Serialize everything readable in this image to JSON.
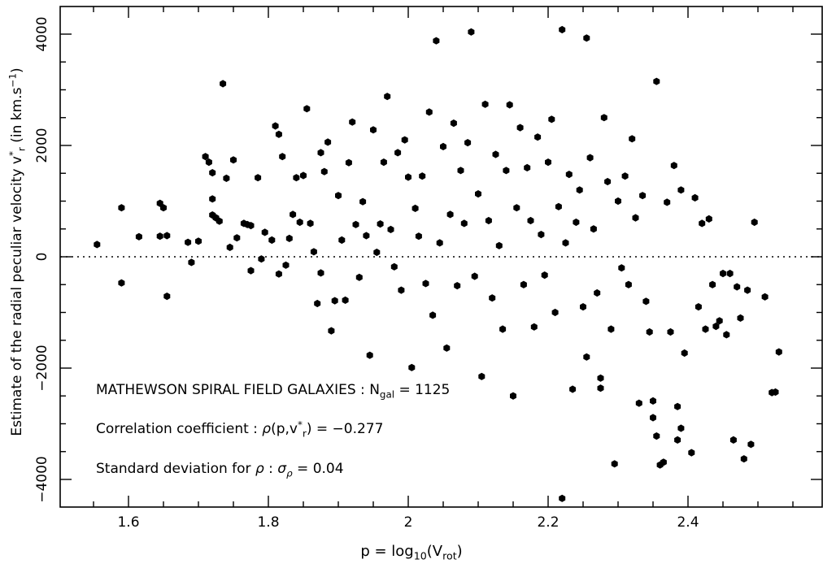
{
  "chart_data": {
    "type": "scatter",
    "xlabel": "p = log10(Vrot)",
    "ylabel": "Estimate of the radial peculiar velocity v*r (in km.s−1)",
    "xlim": [
      1.5,
      2.6
    ],
    "ylim": [
      -4500,
      4500
    ],
    "x_ticks": [
      1.6,
      1.8,
      2.0,
      2.2,
      2.4
    ],
    "x_tick_labels": [
      "1.6",
      "1.8",
      "2",
      "2.2",
      "2.4"
    ],
    "y_ticks": [
      -4000,
      -2000,
      0,
      2000,
      4000
    ],
    "y_tick_labels": [
      "−4000",
      "−2000",
      "0",
      "2000",
      "4000"
    ],
    "reference_line": {
      "y": 0,
      "style": "dotted"
    },
    "grid": false,
    "marker_color": "#000000",
    "annotations": [
      "MATHEWSON SPIRAL FIELD GALAXIES : Ngal = 1125",
      "Correlation coefficient : ρ(p,v*r) = −0.277",
      "Standard deviation for ρ : σρ = 0.04"
    ],
    "n_points": 1125,
    "points": [
      [
        1.555,
        220
      ],
      [
        1.59,
        880
      ],
      [
        1.59,
        -470
      ],
      [
        1.615,
        360
      ],
      [
        1.645,
        960
      ],
      [
        1.645,
        370
      ],
      [
        1.65,
        880
      ],
      [
        1.655,
        380
      ],
      [
        1.655,
        -710
      ],
      [
        1.685,
        260
      ],
      [
        1.69,
        -100
      ],
      [
        1.7,
        280
      ],
      [
        1.71,
        1800
      ],
      [
        1.715,
        1700
      ],
      [
        1.72,
        1510
      ],
      [
        1.72,
        1040
      ],
      [
        1.72,
        750
      ],
      [
        1.725,
        700
      ],
      [
        1.73,
        640
      ],
      [
        1.735,
        3110
      ],
      [
        1.74,
        1410
      ],
      [
        1.745,
        170
      ],
      [
        1.75,
        1740
      ],
      [
        1.755,
        340
      ],
      [
        1.765,
        600
      ],
      [
        1.77,
        580
      ],
      [
        1.775,
        -250
      ],
      [
        1.775,
        560
      ],
      [
        1.785,
        1420
      ],
      [
        1.79,
        -40
      ],
      [
        1.795,
        440
      ],
      [
        1.805,
        300
      ],
      [
        1.81,
        2350
      ],
      [
        1.815,
        2200
      ],
      [
        1.815,
        -310
      ],
      [
        1.82,
        1800
      ],
      [
        1.825,
        -150
      ],
      [
        1.83,
        330
      ],
      [
        1.835,
        760
      ],
      [
        1.84,
        1420
      ],
      [
        1.845,
        620
      ],
      [
        1.85,
        1460
      ],
      [
        1.855,
        2660
      ],
      [
        1.86,
        600
      ],
      [
        1.865,
        90
      ],
      [
        1.87,
        -840
      ],
      [
        1.875,
        1870
      ],
      [
        1.875,
        -290
      ],
      [
        1.88,
        1530
      ],
      [
        1.885,
        2060
      ],
      [
        1.89,
        -1330
      ],
      [
        1.895,
        -790
      ],
      [
        1.9,
        1100
      ],
      [
        1.905,
        300
      ],
      [
        1.91,
        -780
      ],
      [
        1.915,
        1690
      ],
      [
        1.92,
        2420
      ],
      [
        1.925,
        580
      ],
      [
        1.93,
        -370
      ],
      [
        1.935,
        990
      ],
      [
        1.94,
        380
      ],
      [
        1.945,
        -1770
      ],
      [
        1.95,
        2280
      ],
      [
        1.955,
        80
      ],
      [
        1.96,
        590
      ],
      [
        1.965,
        1700
      ],
      [
        1.97,
        2880
      ],
      [
        1.975,
        490
      ],
      [
        1.98,
        -180
      ],
      [
        1.985,
        1870
      ],
      [
        1.99,
        -600
      ],
      [
        1.995,
        2100
      ],
      [
        2.0,
        1430
      ],
      [
        2.005,
        -1990
      ],
      [
        2.01,
        870
      ],
      [
        2.015,
        370
      ],
      [
        2.02,
        1450
      ],
      [
        2.025,
        -480
      ],
      [
        2.03,
        2600
      ],
      [
        2.035,
        -1050
      ],
      [
        2.04,
        3880
      ],
      [
        2.045,
        250
      ],
      [
        2.05,
        1980
      ],
      [
        2.055,
        -1640
      ],
      [
        2.06,
        760
      ],
      [
        2.065,
        2400
      ],
      [
        2.07,
        -520
      ],
      [
        2.075,
        1550
      ],
      [
        2.08,
        600
      ],
      [
        2.085,
        2050
      ],
      [
        2.09,
        4040
      ],
      [
        2.095,
        -350
      ],
      [
        2.1,
        1130
      ],
      [
        2.105,
        -2150
      ],
      [
        2.11,
        2740
      ],
      [
        2.115,
        650
      ],
      [
        2.12,
        -740
      ],
      [
        2.125,
        1840
      ],
      [
        2.13,
        200
      ],
      [
        2.135,
        -1300
      ],
      [
        2.14,
        1550
      ],
      [
        2.145,
        2730
      ],
      [
        2.15,
        -2500
      ],
      [
        2.155,
        880
      ],
      [
        2.16,
        2320
      ],
      [
        2.165,
        -500
      ],
      [
        2.17,
        1600
      ],
      [
        2.175,
        650
      ],
      [
        2.18,
        -1260
      ],
      [
        2.185,
        2150
      ],
      [
        2.19,
        400
      ],
      [
        2.195,
        -330
      ],
      [
        2.2,
        1700
      ],
      [
        2.205,
        2470
      ],
      [
        2.21,
        -1000
      ],
      [
        2.215,
        900
      ],
      [
        2.22,
        4080
      ],
      [
        2.22,
        -4340
      ],
      [
        2.225,
        250
      ],
      [
        2.23,
        1480
      ],
      [
        2.235,
        -2380
      ],
      [
        2.24,
        620
      ],
      [
        2.245,
        1200
      ],
      [
        2.25,
        -900
      ],
      [
        2.255,
        3930
      ],
      [
        2.255,
        -1800
      ],
      [
        2.26,
        1780
      ],
      [
        2.265,
        500
      ],
      [
        2.27,
        -650
      ],
      [
        2.275,
        -2180
      ],
      [
        2.275,
        -2360
      ],
      [
        2.28,
        2500
      ],
      [
        2.285,
        1350
      ],
      [
        2.29,
        -1300
      ],
      [
        2.295,
        -3720
      ],
      [
        2.3,
        1000
      ],
      [
        2.305,
        -200
      ],
      [
        2.31,
        1450
      ],
      [
        2.315,
        -500
      ],
      [
        2.32,
        2120
      ],
      [
        2.325,
        700
      ],
      [
        2.33,
        -2630
      ],
      [
        2.335,
        1100
      ],
      [
        2.34,
        -800
      ],
      [
        2.345,
        -1350
      ],
      [
        2.35,
        -2590
      ],
      [
        2.35,
        -2890
      ],
      [
        2.355,
        -3220
      ],
      [
        2.355,
        3150
      ],
      [
        2.36,
        -3740
      ],
      [
        2.365,
        -3690
      ],
      [
        2.37,
        980
      ],
      [
        2.375,
        -1350
      ],
      [
        2.38,
        1640
      ],
      [
        2.385,
        -2690
      ],
      [
        2.385,
        -3290
      ],
      [
        2.39,
        -3080
      ],
      [
        2.39,
        1200
      ],
      [
        2.395,
        -1730
      ],
      [
        2.405,
        -3520
      ],
      [
        2.41,
        1060
      ],
      [
        2.415,
        -900
      ],
      [
        2.42,
        600
      ],
      [
        2.425,
        -1300
      ],
      [
        2.43,
        680
      ],
      [
        2.435,
        -500
      ],
      [
        2.44,
        -1250
      ],
      [
        2.445,
        -1150
      ],
      [
        2.45,
        -300
      ],
      [
        2.455,
        -1400
      ],
      [
        2.46,
        -300
      ],
      [
        2.465,
        -3290
      ],
      [
        2.47,
        -540
      ],
      [
        2.475,
        -1100
      ],
      [
        2.48,
        -3630
      ],
      [
        2.485,
        -600
      ],
      [
        2.49,
        -3370
      ],
      [
        2.495,
        620
      ],
      [
        2.51,
        -720
      ],
      [
        2.52,
        -2440
      ],
      [
        2.525,
        -2430
      ],
      [
        2.53,
        -1710
      ]
    ]
  }
}
